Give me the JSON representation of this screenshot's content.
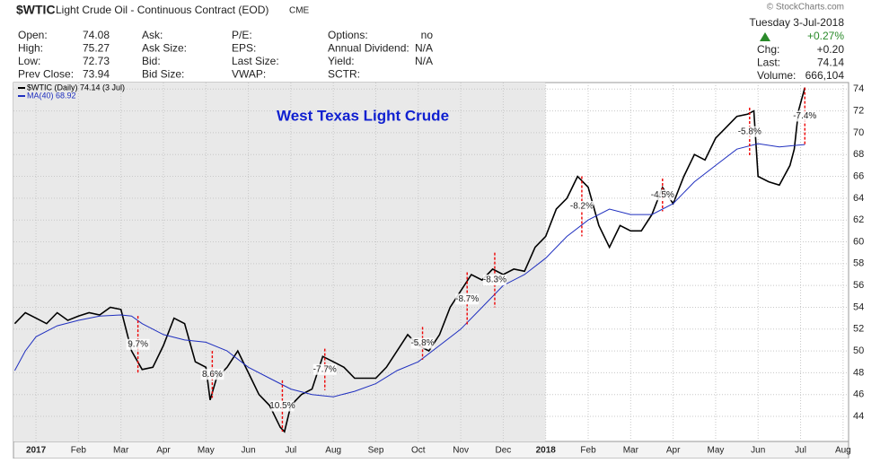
{
  "header": {
    "symbol": "$WTIC",
    "name": "Light Crude Oil - Continuous Contract (EOD)",
    "exchange": "CME",
    "watermark": "© StockCharts.com",
    "columns": [
      [
        {
          "label": "Open:",
          "value": "74.08"
        },
        {
          "label": "High:",
          "value": "75.27"
        },
        {
          "label": "Low:",
          "value": "72.73"
        },
        {
          "label": "Prev Close:",
          "value": "73.94"
        }
      ],
      [
        {
          "label": "Ask:"
        },
        {
          "label": "Ask Size:"
        },
        {
          "label": "Bid:"
        },
        {
          "label": "Bid Size:"
        }
      ],
      [
        {
          "label": "P/E:"
        },
        {
          "label": "EPS:"
        },
        {
          "label": "Last Size:"
        },
        {
          "label": "VWAP:"
        }
      ],
      [
        {
          "label": "Options:",
          "value": "no"
        },
        {
          "label": "Annual Dividend:",
          "value": "N/A"
        },
        {
          "label": "Yield:",
          "value": "N/A"
        },
        {
          "label": "SCTR:"
        }
      ]
    ],
    "date": "Tuesday  3-Jul-2018",
    "change_pct": "+0.27%",
    "quote": [
      {
        "label": "Chg:",
        "value": "+0.20"
      },
      {
        "label": "Last:",
        "value": "74.14"
      },
      {
        "label": "Volume:",
        "value": "666,104"
      }
    ]
  },
  "chart_data": {
    "type": "line",
    "title": "West Texas Light Crude",
    "xlim": [
      -0.53,
      19.13
    ],
    "ylim": [
      41.7,
      74.6
    ],
    "xticks": [
      {
        "value": 0,
        "label": "2017"
      },
      {
        "value": 1,
        "label": "Feb"
      },
      {
        "value": 2,
        "label": "Mar"
      },
      {
        "value": 3,
        "label": "Apr"
      },
      {
        "value": 4,
        "label": "May"
      },
      {
        "value": 5,
        "label": "Jun"
      },
      {
        "value": 6,
        "label": "Jul"
      },
      {
        "value": 7,
        "label": "Aug"
      },
      {
        "value": 8,
        "label": "Sep"
      },
      {
        "value": 9,
        "label": "Oct"
      },
      {
        "value": 10,
        "label": "Nov"
      },
      {
        "value": 11,
        "label": "Dec"
      },
      {
        "value": 12,
        "label": "2018"
      },
      {
        "value": 13,
        "label": "Feb"
      },
      {
        "value": 14,
        "label": "Mar"
      },
      {
        "value": 15,
        "label": "Apr"
      },
      {
        "value": 16,
        "label": "May"
      },
      {
        "value": 17,
        "label": "Jun"
      },
      {
        "value": 18,
        "label": "Jul"
      },
      {
        "value": 19,
        "label": "Aug"
      }
    ],
    "yticks": [
      44,
      46,
      48,
      50,
      52,
      54,
      56,
      58,
      60,
      62,
      64,
      66,
      68,
      70,
      72,
      74
    ],
    "grid": true,
    "series": [
      {
        "name": "$WTIC (Daily) 74.14 (3 Jul)",
        "color": "#000000",
        "x": [
          -0.5,
          -0.25,
          0,
          0.25,
          0.5,
          0.75,
          1,
          1.25,
          1.5,
          1.75,
          2,
          2.25,
          2.5,
          2.75,
          3,
          3.25,
          3.5,
          3.75,
          4,
          4.1,
          4.25,
          4.5,
          4.75,
          5,
          5.25,
          5.5,
          5.75,
          5.85,
          6,
          6.25,
          6.5,
          6.75,
          7,
          7.25,
          7.5,
          7.75,
          8,
          8.25,
          8.5,
          8.75,
          9,
          9.25,
          9.5,
          9.75,
          10,
          10.25,
          10.5,
          10.75,
          11,
          11.25,
          11.5,
          11.75,
          12,
          12.25,
          12.5,
          12.75,
          13,
          13.25,
          13.5,
          13.75,
          14,
          14.25,
          14.5,
          14.75,
          15,
          15.25,
          15.5,
          15.75,
          16,
          16.25,
          16.5,
          16.75,
          16.9,
          17,
          17.25,
          17.5,
          17.75,
          17.85,
          17.95,
          18.1
        ],
        "values": [
          52.5,
          53.5,
          53,
          52.5,
          53.5,
          52.8,
          53.2,
          53.5,
          53.3,
          54,
          53.8,
          50,
          48.3,
          48.5,
          50.5,
          53,
          52.5,
          49,
          48.5,
          45.5,
          47.5,
          48.5,
          50,
          48,
          46,
          45,
          43,
          42.6,
          45,
          46,
          46.5,
          49.5,
          49,
          48.5,
          47.5,
          47.5,
          47.5,
          48.5,
          50,
          51.5,
          50.5,
          50,
          51.5,
          54,
          55.5,
          57,
          56.5,
          57.5,
          57,
          57.5,
          57.3,
          59.5,
          60.5,
          63,
          64,
          66,
          65,
          61.5,
          59.5,
          61.5,
          61,
          61,
          62.5,
          65,
          63.5,
          66,
          68,
          67.5,
          69.5,
          70.5,
          71.5,
          71.7,
          72,
          66,
          65.5,
          65.2,
          67,
          68.5,
          72,
          74.14
        ]
      },
      {
        "name": "MA(40) 68.92",
        "color": "#1f2fbf",
        "x": [
          -0.5,
          -0.25,
          0,
          0.5,
          1,
          1.5,
          2,
          2.25,
          2.5,
          3,
          3.5,
          4,
          4.5,
          5,
          5.5,
          6,
          6.5,
          7,
          7.5,
          8,
          8.5,
          9,
          9.5,
          10,
          10.5,
          11,
          11.5,
          12,
          12.5,
          13,
          13.5,
          14,
          14.5,
          15,
          15.5,
          16,
          16.5,
          17,
          17.5,
          18.1
        ],
        "values": [
          48.2,
          50,
          51.3,
          52.3,
          52.8,
          53.2,
          53.3,
          53.2,
          52.5,
          51.5,
          51,
          50.8,
          50,
          48.5,
          47.5,
          46.5,
          46,
          45.8,
          46.3,
          47,
          48.2,
          49,
          50.5,
          52,
          54,
          56,
          57,
          58.5,
          60.5,
          62,
          63,
          62.5,
          62.5,
          63.5,
          65.5,
          67,
          68.5,
          69,
          68.7,
          68.92
        ]
      }
    ],
    "annotations": [
      {
        "label": "9.7%",
        "x": 2.4,
        "from": 53.2,
        "to": 48
      },
      {
        "label": "8.6%",
        "x": 4.15,
        "from": 50,
        "to": 45.7
      },
      {
        "label": "10.5%",
        "x": 5.8,
        "from": 47.3,
        "to": 42.6
      },
      {
        "label": "-7.7%",
        "x": 6.8,
        "from": 50.2,
        "to": 46.4
      },
      {
        "label": "-5.8%",
        "x": 9.1,
        "from": 52.2,
        "to": 49.2
      },
      {
        "label": "-8.7%",
        "x": 10.15,
        "from": 57.2,
        "to": 52.3
      },
      {
        "label": "-8.3%",
        "x": 10.8,
        "from": 59,
        "to": 54
      },
      {
        "label": "-8.2%",
        "x": 12.85,
        "from": 66,
        "to": 60.5
      },
      {
        "label": "-4.5%",
        "x": 14.75,
        "from": 65.8,
        "to": 62.8
      },
      {
        "label": "-5.8%",
        "x": 16.8,
        "from": 72.3,
        "to": 67.9
      },
      {
        "label": "-7.4%",
        "x": 18.1,
        "from": 74.14,
        "to": 68.9
      }
    ]
  }
}
